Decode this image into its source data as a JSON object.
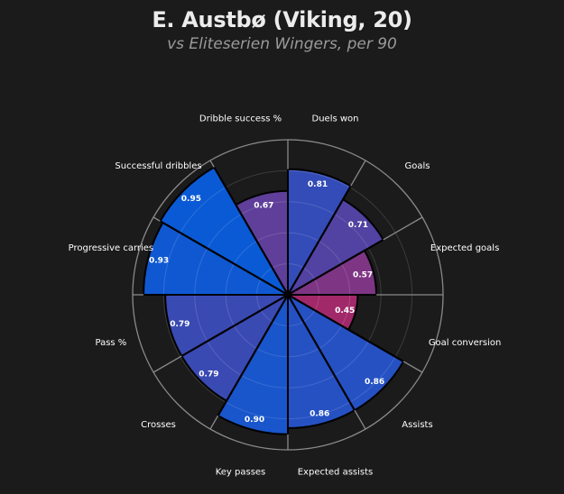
{
  "chart_data": {
    "type": "polar-bar",
    "title": "E. Austbø (Viking, 20)",
    "subtitle": "vs Eliteserien Wingers, per 90",
    "rlim": [
      0,
      1
    ],
    "grid": true,
    "categories": [
      "Duels won",
      "Goals",
      "Expected goals",
      "Goal conversion",
      "Assists",
      "Expected assists",
      "Key passes",
      "Crosses",
      "Pass %",
      "Progressive carries",
      "Successful dribbles",
      "Dribble success %"
    ],
    "values": [
      0.81,
      0.71,
      0.57,
      0.45,
      0.86,
      0.86,
      0.9,
      0.79,
      0.79,
      0.93,
      0.95,
      0.67
    ],
    "value_labels": [
      "0.81",
      "0.71",
      "0.57",
      "0.45",
      "0.86",
      "0.86",
      "0.90",
      "0.79",
      "0.79",
      "0.93",
      "0.95",
      "0.67"
    ],
    "color_scale": {
      "low": "#b0245f",
      "high": "#0a5ad6"
    }
  }
}
